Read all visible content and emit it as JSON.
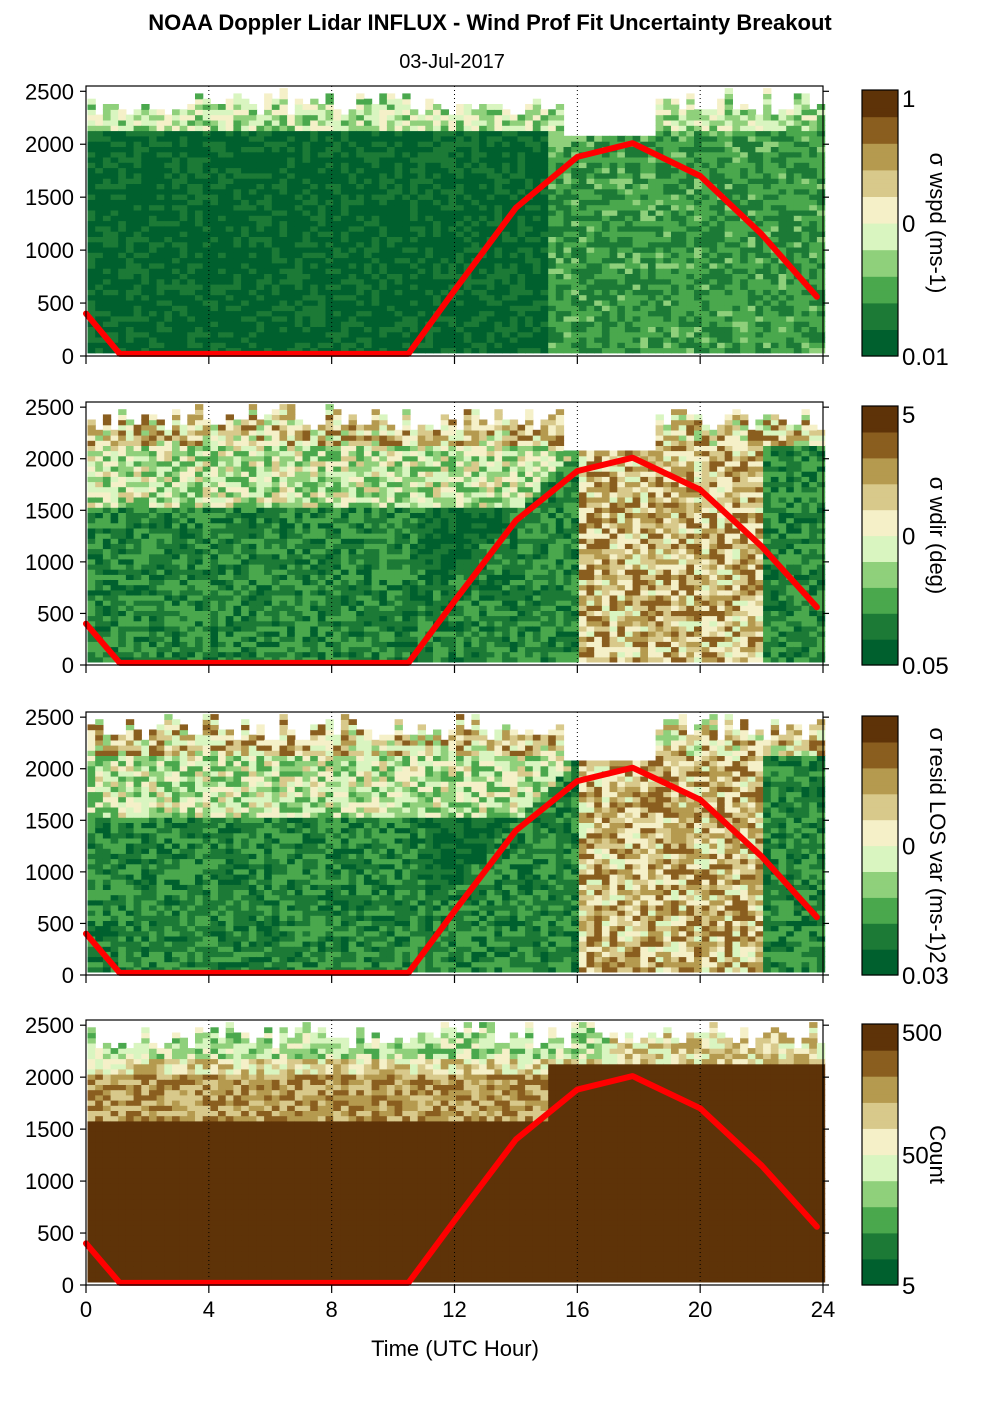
{
  "figure": {
    "title": "NOAA Doppler Lidar INFLUX - Wind Prof Fit Uncertainty Breakout",
    "subtitle": "03-Jul-2017",
    "xlabel": "Time (UTC Hour)"
  },
  "colors": {
    "colormap": [
      "#00602e",
      "#1c7a36",
      "#4aa84d",
      "#8fd07b",
      "#d9f5c0",
      "#f5f0c8",
      "#d8c98b",
      "#b59a4f",
      "#8a5e1f",
      "#5e3308"
    ],
    "curve": "#ff0000",
    "grid": "#000000"
  },
  "chart_data": [
    {
      "type": "heatmap",
      "panel_id": "wspd",
      "x_range": [
        0,
        24
      ],
      "y_range": [
        0,
        2550
      ],
      "x_ticks": [
        0,
        4,
        8,
        12,
        16,
        20,
        24
      ],
      "y_ticks": [
        0,
        500,
        1000,
        1500,
        2000,
        2500
      ],
      "grid_lines_x": [
        4,
        8,
        12,
        16,
        20,
        24
      ],
      "colorbar": {
        "label": "σ wspd (ms-1)",
        "ticks": [
          "1",
          "0",
          "0.01"
        ],
        "scale": "log"
      },
      "description_values": {
        "night_low_level": 0.01,
        "day_upper_level": 0.1,
        "top_data_height_m": 2300
      },
      "curve": {
        "name": "",
        "x": [
          0,
          1.1,
          10.5,
          12,
          14,
          16,
          17.8,
          20,
          22,
          23.8
        ],
        "y": [
          400,
          20,
          20,
          620,
          1400,
          1880,
          2010,
          1700,
          1150,
          560
        ]
      }
    },
    {
      "type": "heatmap",
      "panel_id": "wdir",
      "x_range": [
        0,
        24
      ],
      "y_range": [
        0,
        2550
      ],
      "x_ticks": [
        0,
        4,
        8,
        12,
        16,
        20,
        24
      ],
      "y_ticks": [
        0,
        500,
        1000,
        1500,
        2000,
        2500
      ],
      "grid_lines_x": [
        4,
        8,
        12,
        16,
        20,
        24
      ],
      "colorbar": {
        "label": "σ wdir (deg)",
        "ticks": [
          "5",
          "0",
          "0.05"
        ],
        "scale": "log"
      },
      "curve": {
        "name": "",
        "x": [
          0,
          1.1,
          10.5,
          12,
          14,
          16,
          17.8,
          20,
          22,
          23.8
        ],
        "y": [
          400,
          20,
          20,
          620,
          1400,
          1880,
          2010,
          1700,
          1150,
          560
        ]
      }
    },
    {
      "type": "heatmap",
      "panel_id": "resid",
      "x_range": [
        0,
        24
      ],
      "y_range": [
        0,
        2550
      ],
      "x_ticks": [
        0,
        4,
        8,
        12,
        16,
        20,
        24
      ],
      "y_ticks": [
        0,
        500,
        1000,
        1500,
        2000,
        2500
      ],
      "grid_lines_x": [
        4,
        8,
        12,
        16,
        20,
        24
      ],
      "colorbar": {
        "label": "σ resid LOS var (ms-1)2",
        "ticks": [
          "0",
          "0.03"
        ],
        "scale": "log"
      },
      "curve": {
        "name": "",
        "x": [
          0,
          1.1,
          10.5,
          12,
          14,
          16,
          17.8,
          20,
          22,
          23.8
        ],
        "y": [
          400,
          20,
          20,
          620,
          1400,
          1880,
          2010,
          1700,
          1150,
          560
        ]
      }
    },
    {
      "type": "heatmap",
      "panel_id": "count",
      "x_range": [
        0,
        24
      ],
      "y_range": [
        0,
        2550
      ],
      "x_ticks": [
        0,
        4,
        8,
        12,
        16,
        20,
        24
      ],
      "y_ticks": [
        0,
        500,
        1000,
        1500,
        2000,
        2500
      ],
      "grid_lines_x": [
        4,
        8,
        12,
        16,
        20,
        24
      ],
      "colorbar": {
        "label": "Count",
        "ticks": [
          "500",
          "50",
          "5"
        ],
        "scale": "log"
      },
      "curve": {
        "name": "",
        "x": [
          0,
          1.1,
          10.5,
          12,
          14,
          16,
          17.8,
          20,
          22,
          23.8
        ],
        "y": [
          400,
          20,
          20,
          620,
          1400,
          1880,
          2010,
          1700,
          1150,
          560
        ]
      }
    }
  ]
}
